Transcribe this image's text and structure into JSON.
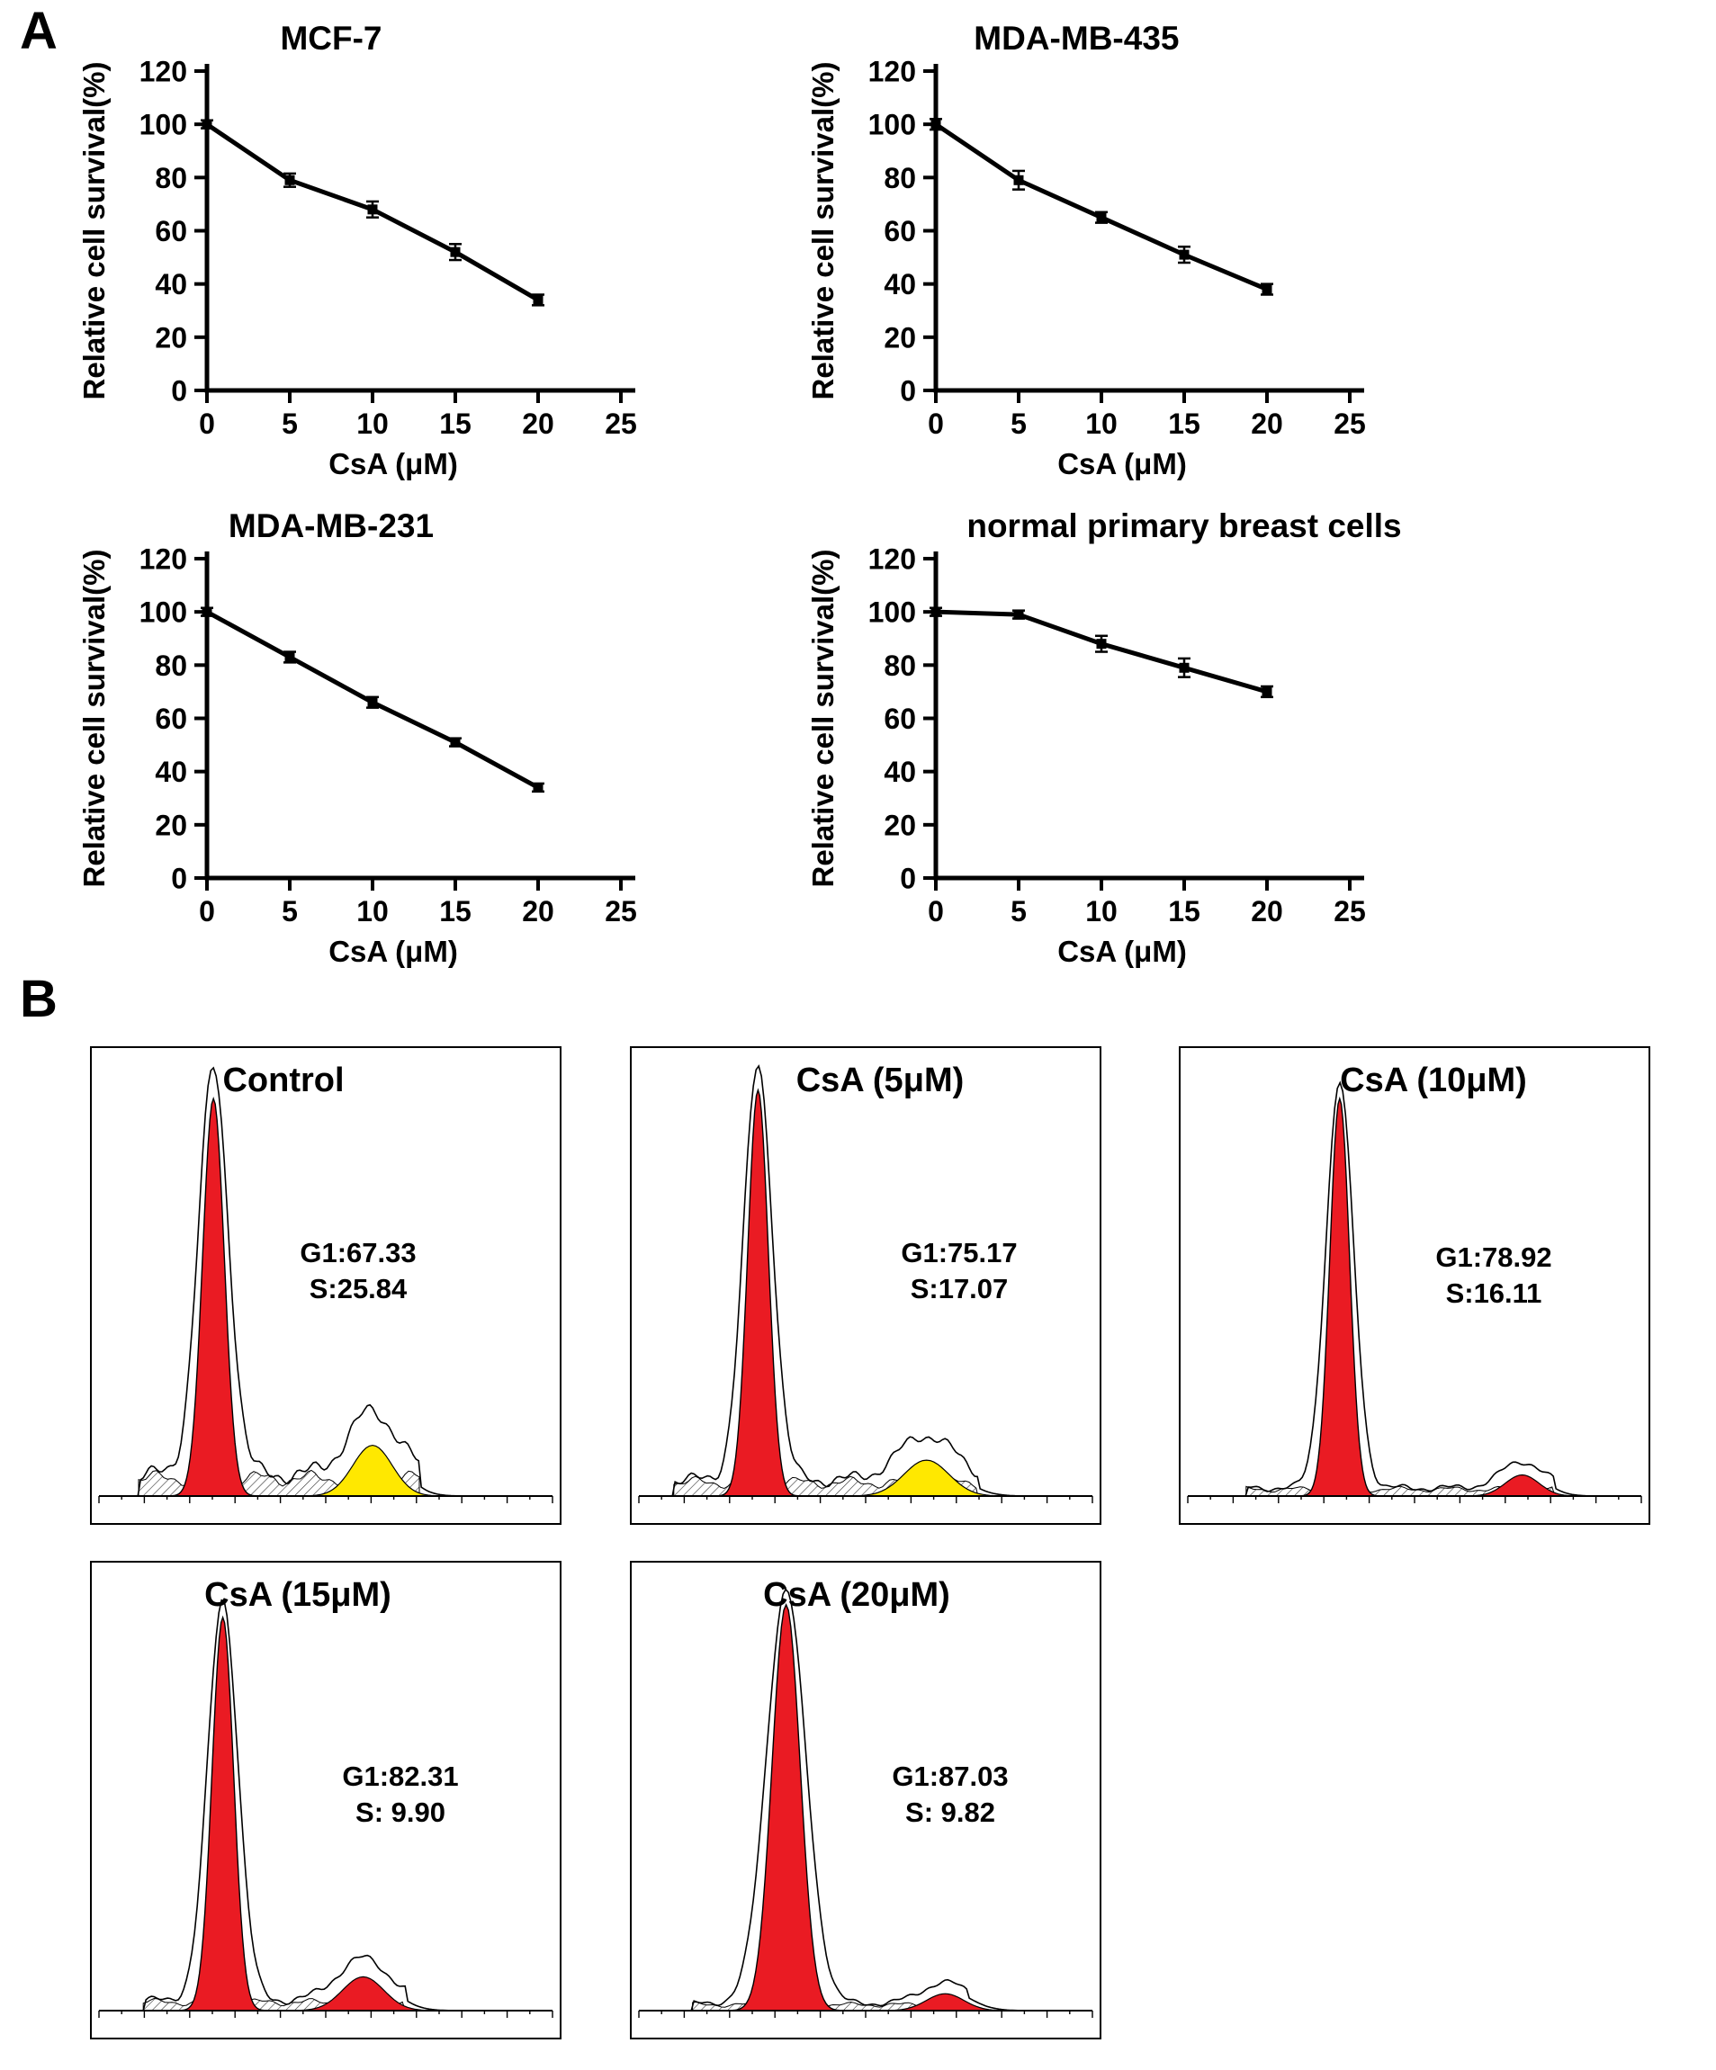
{
  "panels": {
    "a": "A",
    "b": "B"
  },
  "colors": {
    "axis": "#000000",
    "series": "#000000",
    "peak_red": "#ea1b23",
    "peak_yellow": "#ffe800"
  },
  "chart_data": [
    {
      "type": "line",
      "title": "MCF-7",
      "xlabel": "CsA (μM)",
      "ylabel": "Relative cell survival(%)",
      "x": [
        0,
        5,
        10,
        15,
        20
      ],
      "values": [
        100,
        79,
        68,
        52,
        34
      ],
      "errors": [
        1.5,
        2.5,
        3,
        3,
        2
      ],
      "xlim": [
        0,
        25
      ],
      "ylim": [
        0,
        120
      ],
      "xticks": [
        0,
        5,
        10,
        15,
        20,
        25
      ],
      "yticks": [
        0,
        20,
        40,
        60,
        80,
        100,
        120
      ],
      "marker": "square",
      "grid": false,
      "layout": {
        "title_frac": 0.3,
        "xlabel_frac": 0.45
      }
    },
    {
      "type": "line",
      "title": "MDA-MB-435",
      "xlabel": "CsA (μM)",
      "ylabel": "Relative cell survival(%)",
      "x": [
        0,
        5,
        10,
        15,
        20
      ],
      "values": [
        100,
        79,
        65,
        51,
        38
      ],
      "errors": [
        2,
        3.5,
        2,
        3,
        2
      ],
      "xlim": [
        0,
        25
      ],
      "ylim": [
        0,
        120
      ],
      "xticks": [
        0,
        5,
        10,
        15,
        20,
        25
      ],
      "yticks": [
        0,
        20,
        40,
        60,
        80,
        100,
        120
      ],
      "marker": "square",
      "grid": false,
      "layout": {
        "title_frac": 0.34,
        "xlabel_frac": 0.45
      }
    },
    {
      "type": "line",
      "title": "MDA-MB-231",
      "xlabel": "CsA (μM)",
      "ylabel": "Relative cell survival(%)",
      "x": [
        0,
        5,
        10,
        15,
        20
      ],
      "values": [
        100,
        83,
        66,
        51,
        34
      ],
      "errors": [
        1.5,
        2,
        2,
        1.5,
        1.5
      ],
      "xlim": [
        0,
        25
      ],
      "ylim": [
        0,
        120
      ],
      "xticks": [
        0,
        5,
        10,
        15,
        20,
        25
      ],
      "yticks": [
        0,
        20,
        40,
        60,
        80,
        100,
        120
      ],
      "marker": "square",
      "grid": false,
      "layout": {
        "title_frac": 0.3,
        "xlabel_frac": 0.45
      }
    },
    {
      "type": "line",
      "title": "normal primary breast cells",
      "xlabel": "CsA (μM)",
      "ylabel": "Relative cell survival(%)",
      "x": [
        0,
        5,
        10,
        15,
        20
      ],
      "values": [
        100,
        99,
        88,
        79,
        70
      ],
      "errors": [
        1.5,
        1.5,
        3,
        3.5,
        2
      ],
      "xlim": [
        0,
        25
      ],
      "ylim": [
        0,
        120
      ],
      "xticks": [
        0,
        5,
        10,
        15,
        20,
        25
      ],
      "yticks": [
        0,
        20,
        40,
        60,
        80,
        100,
        120
      ],
      "marker": "square",
      "grid": false,
      "layout": {
        "title_frac": 0.6,
        "xlabel_frac": 0.45
      }
    },
    {
      "type": "flow-histogram",
      "title": "Control",
      "annotations": [
        "G1:67.33",
        "S:25.84"
      ],
      "g1_percent": 67.33,
      "s_percent": 25.84,
      "layout": {
        "title_x": 0.41,
        "label_x": 0.57,
        "label_y": 0.45,
        "g1": {
          "x": 0.26,
          "h": 0.94,
          "w": 0.023
        },
        "s_band": {
          "x1": 0.1,
          "x2": 0.7,
          "h": 0.042
        },
        "g2": {
          "x": 0.6,
          "h": 0.12,
          "w": 0.042,
          "color": "yellow"
        }
      }
    },
    {
      "type": "flow-histogram",
      "title": "CsA (5μM)",
      "annotations": [
        "G1:75.17",
        "S:17.07"
      ],
      "g1_percent": 75.17,
      "s_percent": 17.07,
      "layout": {
        "title_x": 0.53,
        "label_x": 0.7,
        "label_y": 0.45,
        "g1": {
          "x": 0.27,
          "h": 0.96,
          "w": 0.022
        },
        "s_band": {
          "x1": 0.09,
          "x2": 0.74,
          "h": 0.032
        },
        "g2": {
          "x": 0.63,
          "h": 0.085,
          "w": 0.048,
          "color": "yellow"
        }
      }
    },
    {
      "type": "flow-histogram",
      "title": "CsA (10μM)",
      "annotations": [
        "G1:78.92",
        "S:16.11"
      ],
      "g1_percent": 78.92,
      "s_percent": 16.11,
      "layout": {
        "title_x": 0.54,
        "label_x": 0.67,
        "label_y": 0.46,
        "g1": {
          "x": 0.34,
          "h": 0.94,
          "w": 0.021
        },
        "s_band": {
          "x1": 0.14,
          "x2": 0.8,
          "h": 0.016
        },
        "g2": {
          "x": 0.73,
          "h": 0.05,
          "w": 0.036,
          "color": "red"
        }
      }
    },
    {
      "type": "flow-histogram",
      "title": "CsA (15μM)",
      "annotations": [
        "G1:82.31",
        "S: 9.90"
      ],
      "g1_percent": 82.31,
      "s_percent": 9.9,
      "layout": {
        "title_x": 0.44,
        "label_x": 0.66,
        "label_y": 0.47,
        "g1": {
          "x": 0.28,
          "h": 0.93,
          "w": 0.023
        },
        "s_band": {
          "x1": 0.11,
          "x2": 0.67,
          "h": 0.02
        },
        "g2": {
          "x": 0.58,
          "h": 0.08,
          "w": 0.044,
          "color": "red"
        }
      }
    },
    {
      "type": "flow-histogram",
      "title": "CsA (20μM)",
      "annotations": [
        "G1:87.03",
        "S: 9.82"
      ],
      "g1_percent": 87.03,
      "s_percent": 9.82,
      "layout": {
        "title_x": 0.48,
        "label_x": 0.68,
        "label_y": 0.47,
        "g1": {
          "x": 0.33,
          "h": 0.96,
          "w": 0.03
        },
        "s_band": {
          "x1": 0.13,
          "x2": 0.72,
          "h": 0.014
        },
        "g2": {
          "x": 0.67,
          "h": 0.04,
          "w": 0.04,
          "color": "red"
        }
      }
    }
  ]
}
